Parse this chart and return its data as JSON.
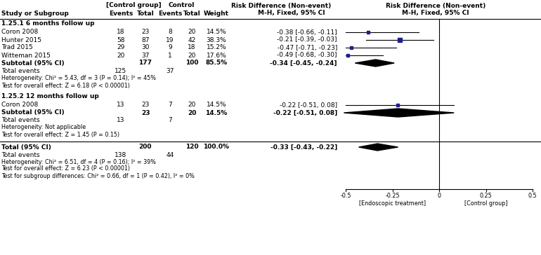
{
  "header_col_group1": "[Control group]",
  "header_col_group2": "Control",
  "header_col_rd": "Risk Difference (Non-event)",
  "header_col_rd2": "M-H, Fixed, 95% CI",
  "header_col_plot": "Risk Difference (Non-event)",
  "header_col_plot2": "M-H, Fixed, 95% CI",
  "section1_title": "1.25.1 6 months follow up",
  "section1_studies": [
    {
      "study": "Coron 2008",
      "e1": 18,
      "t1": 23,
      "e2": 8,
      "t2": 20,
      "weight": "14.5%",
      "rd": "-0.38 [-0.66, -0.11]",
      "est": -0.38,
      "lo": -0.66,
      "hi": -0.11
    },
    {
      "study": "Hunter 2015",
      "e1": 58,
      "t1": 87,
      "e2": 19,
      "t2": 42,
      "weight": "38.3%",
      "rd": "-0.21 [-0.39, -0.03]",
      "est": -0.21,
      "lo": -0.39,
      "hi": -0.03
    },
    {
      "study": "Trad 2015",
      "e1": 29,
      "t1": 30,
      "e2": 9,
      "t2": 18,
      "weight": "15.2%",
      "rd": "-0.47 [-0.71, -0.23]",
      "est": -0.47,
      "lo": -0.71,
      "hi": -0.23
    },
    {
      "study": "Witteman 2015",
      "e1": 20,
      "t1": 37,
      "e2": 1,
      "t2": 20,
      "weight": "17.6%",
      "rd": "-0.49 [-0.68, -0.30]",
      "est": -0.49,
      "lo": -0.68,
      "hi": -0.3
    }
  ],
  "section1_subtotal": {
    "label": "Subtotal (95% CI)",
    "t1": 177,
    "t2": 100,
    "weight": "85.5%",
    "rd": "-0.34 [-0.45, -0.24]",
    "est": -0.34,
    "lo": -0.45,
    "hi": -0.24
  },
  "section1_total_events": {
    "e1": 125,
    "e2": 37
  },
  "section1_het": "Heterogeneity: Chi² = 5.43, df = 3 (P = 0.14); I² = 45%",
  "section1_test": "Test for overall effect: Z = 6.18 (P < 0.00001)",
  "section2_title": "1.25.2 12 months follow up",
  "section2_studies": [
    {
      "study": "Coron 2008",
      "e1": 13,
      "t1": 23,
      "e2": 7,
      "t2": 20,
      "weight": "14.5%",
      "rd": "-0.22 [-0.51, 0.08]",
      "est": -0.22,
      "lo": -0.51,
      "hi": 0.08
    }
  ],
  "section2_subtotal": {
    "label": "Subtotal (95% CI)",
    "t1": 23,
    "t2": 20,
    "weight": "14.5%",
    "rd": "-0.22 [-0.51, 0.08]",
    "est": -0.22,
    "lo": -0.51,
    "hi": 0.08
  },
  "section2_total_events": {
    "e1": 13,
    "e2": 7
  },
  "section2_het": "Heterogeneity: Not applicable",
  "section2_test": "Test for overall effect: Z = 1.45 (P = 0.15)",
  "total": {
    "label": "Total (95% CI)",
    "t1": 200,
    "t2": 120,
    "weight": "100.0%",
    "rd": "-0.33 [-0.43, -0.22]",
    "est": -0.33,
    "lo": -0.43,
    "hi": -0.22
  },
  "total_events": {
    "e1": 138,
    "e2": 44
  },
  "total_het": "Heterogeneity: Chi² = 6.51, df = 4 (P = 0.16); I² = 39%",
  "total_test": "Test for overall effect: Z = 6.23 (P < 0.00001)",
  "total_subgroup": "Test for subgroup differences: Chi² = 0.66, df = 1 (P = 0.42), I² = 0%",
  "axis_min": -0.5,
  "axis_max": 0.5,
  "axis_ticks": [
    -0.5,
    -0.25,
    0,
    0.25,
    0.5
  ],
  "axis_ticklabels": [
    "-0.5",
    "-0.25",
    "0",
    "0.25",
    "0.5"
  ],
  "axis_label_left": "[Endoscopic treatment]",
  "axis_label_right": "[Control group]",
  "bg_color": "#ffffff",
  "text_color": "#000000",
  "diamond_color": "#000000",
  "marker_color": "#1f1f8f",
  "line_color": "#000000"
}
